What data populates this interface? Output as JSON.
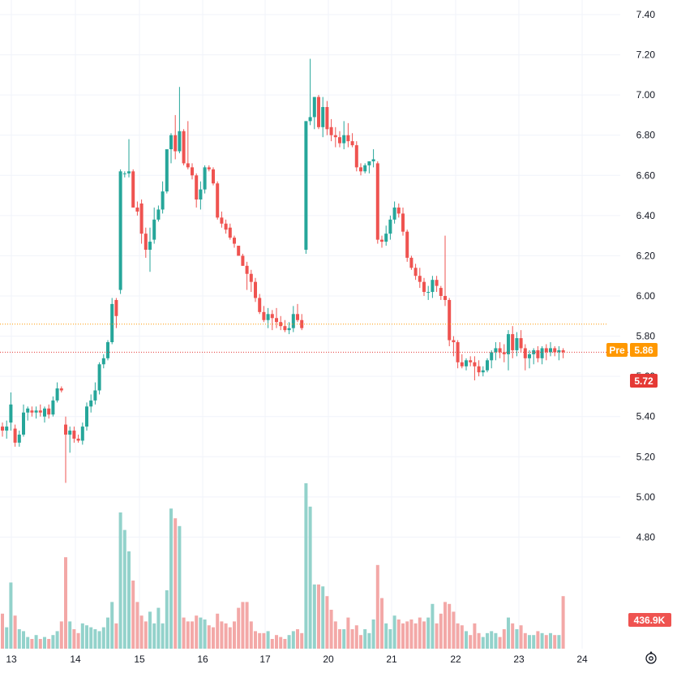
{
  "colors": {
    "up": "#26a69a",
    "down": "#ef5350",
    "up_volume": "#93d2cb",
    "down_volume": "#f3a8a7",
    "grid": "#f0f3fa",
    "pre_line": "#ff9800",
    "last_line": "#e53935"
  },
  "settings_icon": "gear-icon",
  "chart_data": {
    "type": "candlestick",
    "y_axis": {
      "min": 4.6,
      "max": 7.4,
      "ticks": [
        "7.40",
        "7.20",
        "7.00",
        "6.80",
        "6.60",
        "6.40",
        "6.20",
        "6.00",
        "5.80",
        "5.60",
        "5.40",
        "5.20",
        "5.00",
        "4.80"
      ]
    },
    "x_axis": {
      "ticks": [
        "13",
        "14",
        "15",
        "16",
        "17",
        "20",
        "21",
        "22",
        "23",
        "24"
      ]
    },
    "grid": true,
    "pre_market": {
      "label": "Pre",
      "value": "5.86"
    },
    "last_price": {
      "value": "5.72"
    },
    "volume_label": "436.9K",
    "candles": [
      [
        5.35,
        5.37,
        5.3,
        5.33,
        18
      ],
      [
        5.33,
        5.38,
        5.29,
        5.35,
        11
      ],
      [
        5.37,
        5.52,
        5.33,
        5.46,
        34
      ],
      [
        5.34,
        5.36,
        5.25,
        5.27,
        17
      ],
      [
        5.27,
        5.33,
        5.25,
        5.31,
        10
      ],
      [
        5.31,
        5.46,
        5.3,
        5.42,
        9
      ],
      [
        5.42,
        5.45,
        5.38,
        5.44,
        6
      ],
      [
        5.43,
        5.45,
        5.4,
        5.42,
        5
      ],
      [
        5.42,
        5.45,
        5.39,
        5.43,
        7
      ],
      [
        5.43,
        5.46,
        5.4,
        5.42,
        5
      ],
      [
        5.4,
        5.45,
        5.37,
        5.44,
        6
      ],
      [
        5.44,
        5.46,
        5.39,
        5.41,
        5
      ],
      [
        5.41,
        5.5,
        5.4,
        5.48,
        7
      ],
      [
        5.48,
        5.57,
        5.47,
        5.54,
        9
      ],
      [
        5.54,
        5.55,
        5.52,
        5.53,
        14
      ],
      [
        5.36,
        5.4,
        5.07,
        5.31,
        47
      ],
      [
        5.31,
        5.35,
        5.22,
        5.33,
        14
      ],
      [
        5.33,
        5.35,
        5.27,
        5.29,
        10
      ],
      [
        5.29,
        5.31,
        5.27,
        5.28,
        8
      ],
      [
        5.28,
        5.37,
        5.26,
        5.35,
        13
      ],
      [
        5.35,
        5.47,
        5.33,
        5.45,
        12
      ],
      [
        5.45,
        5.51,
        5.42,
        5.48,
        11
      ],
      [
        5.48,
        5.57,
        5.46,
        5.53,
        10
      ],
      [
        5.53,
        5.67,
        5.51,
        5.66,
        9
      ],
      [
        5.66,
        5.71,
        5.64,
        5.69,
        11
      ],
      [
        5.69,
        5.78,
        5.68,
        5.77,
        16
      ],
      [
        5.77,
        5.99,
        5.76,
        5.96,
        24
      ],
      [
        5.98,
        5.99,
        5.84,
        5.9,
        13
      ],
      [
        6.03,
        6.63,
        6.01,
        6.62,
        70
      ],
      [
        6.61,
        6.62,
        6.59,
        6.61,
        61
      ],
      [
        6.61,
        6.78,
        6.59,
        6.62,
        50
      ],
      [
        6.62,
        6.63,
        6.44,
        6.44,
        35
      ],
      [
        6.44,
        6.47,
        6.4,
        6.42,
        24
      ],
      [
        6.46,
        6.48,
        6.26,
        6.31,
        17
      ],
      [
        6.31,
        6.34,
        6.19,
        6.23,
        14
      ],
      [
        6.23,
        6.34,
        6.12,
        6.27,
        19
      ],
      [
        6.28,
        6.44,
        6.26,
        6.38,
        13
      ],
      [
        6.38,
        6.45,
        6.37,
        6.43,
        21
      ],
      [
        6.43,
        6.57,
        6.41,
        6.52,
        13
      ],
      [
        6.52,
        6.72,
        6.51,
        6.73,
        30
      ],
      [
        6.73,
        6.81,
        6.66,
        6.8,
        72
      ],
      [
        6.8,
        6.9,
        6.68,
        6.72,
        67
      ],
      [
        6.72,
        7.04,
        6.71,
        6.82,
        63
      ],
      [
        6.82,
        6.83,
        6.65,
        6.66,
        16
      ],
      [
        6.66,
        6.87,
        6.63,
        6.64,
        14
      ],
      [
        6.64,
        6.66,
        6.58,
        6.6,
        14
      ],
      [
        6.6,
        6.61,
        6.44,
        6.48,
        17
      ],
      [
        6.48,
        6.57,
        6.43,
        6.53,
        16
      ],
      [
        6.53,
        6.65,
        6.51,
        6.64,
        15
      ],
      [
        6.64,
        6.65,
        6.62,
        6.63,
        12
      ],
      [
        6.63,
        6.64,
        6.55,
        6.56,
        11
      ],
      [
        6.56,
        6.57,
        6.38,
        6.39,
        18
      ],
      [
        6.39,
        6.42,
        6.34,
        6.36,
        14
      ],
      [
        6.36,
        6.38,
        6.31,
        6.33,
        13
      ],
      [
        6.34,
        6.36,
        6.28,
        6.29,
        11
      ],
      [
        6.29,
        6.3,
        6.24,
        6.26,
        14
      ],
      [
        6.25,
        6.25,
        6.2,
        6.2,
        21
      ],
      [
        6.2,
        6.21,
        6.15,
        6.15,
        24
      ],
      [
        6.15,
        6.17,
        6.03,
        6.11,
        24
      ],
      [
        6.11,
        6.13,
        6.02,
        6.07,
        14
      ],
      [
        6.07,
        6.09,
        5.97,
        5.99,
        9
      ],
      [
        5.99,
        6.01,
        5.91,
        5.92,
        8
      ],
      [
        5.92,
        5.95,
        5.87,
        5.88,
        8
      ],
      [
        5.88,
        5.94,
        5.84,
        5.91,
        9
      ],
      [
        5.91,
        5.93,
        5.83,
        5.89,
        5
      ],
      [
        5.89,
        5.94,
        5.84,
        5.87,
        7
      ],
      [
        5.87,
        5.9,
        5.83,
        5.85,
        6
      ],
      [
        5.85,
        5.88,
        5.82,
        5.83,
        5
      ],
      [
        5.83,
        5.87,
        5.81,
        5.84,
        7
      ],
      [
        5.84,
        5.95,
        5.82,
        5.91,
        9
      ],
      [
        5.91,
        5.96,
        5.87,
        5.88,
        10
      ],
      [
        5.88,
        5.91,
        5.83,
        5.84,
        8
      ],
      [
        6.23,
        6.87,
        6.21,
        6.87,
        85
      ],
      [
        6.87,
        7.18,
        6.85,
        6.89,
        73
      ],
      [
        6.89,
        6.99,
        6.83,
        6.99,
        33
      ],
      [
        6.99,
        7.0,
        6.83,
        6.84,
        33
      ],
      [
        6.84,
        6.99,
        6.79,
        6.94,
        32
      ],
      [
        6.94,
        6.97,
        6.8,
        6.83,
        27
      ],
      [
        6.84,
        6.88,
        6.77,
        6.8,
        20
      ],
      [
        6.8,
        6.84,
        6.74,
        6.79,
        14
      ],
      [
        6.79,
        6.82,
        6.74,
        6.76,
        10
      ],
      [
        6.76,
        6.87,
        6.73,
        6.8,
        10
      ],
      [
        6.8,
        6.86,
        6.74,
        6.77,
        16
      ],
      [
        6.77,
        6.81,
        6.74,
        6.75,
        10
      ],
      [
        6.75,
        6.77,
        6.62,
        6.64,
        12
      ],
      [
        6.64,
        6.66,
        6.6,
        6.62,
        7
      ],
      [
        6.62,
        6.66,
        6.61,
        6.65,
        10
      ],
      [
        6.65,
        6.67,
        6.61,
        6.67,
        8
      ],
      [
        6.67,
        6.73,
        6.64,
        6.68,
        15
      ],
      [
        6.66,
        6.67,
        6.26,
        6.28,
        43
      ],
      [
        6.28,
        6.3,
        6.24,
        6.27,
        26
      ],
      [
        6.27,
        6.35,
        6.25,
        6.31,
        13
      ],
      [
        6.31,
        6.4,
        6.28,
        6.38,
        10
      ],
      [
        6.38,
        6.47,
        6.36,
        6.44,
        17
      ],
      [
        6.44,
        6.46,
        6.39,
        6.41,
        15
      ],
      [
        6.41,
        6.44,
        6.3,
        6.32,
        13
      ],
      [
        6.32,
        6.33,
        6.17,
        6.19,
        14
      ],
      [
        6.19,
        6.2,
        6.13,
        6.14,
        15
      ],
      [
        6.14,
        6.16,
        6.08,
        6.1,
        13
      ],
      [
        6.1,
        6.14,
        6.04,
        6.07,
        16
      ],
      [
        6.07,
        6.09,
        6.0,
        6.02,
        14
      ],
      [
        6.02,
        6.05,
        5.98,
        6.02,
        16
      ],
      [
        6.02,
        6.1,
        5.99,
        6.08,
        23
      ],
      [
        6.08,
        6.1,
        6.02,
        6.05,
        13
      ],
      [
        6.04,
        6.05,
        5.98,
        6.0,
        18
      ],
      [
        6.0,
        6.3,
        5.95,
        5.98,
        24
      ],
      [
        5.98,
        5.99,
        5.75,
        5.78,
        23
      ],
      [
        5.78,
        5.8,
        5.7,
        5.77,
        19
      ],
      [
        5.77,
        5.78,
        5.64,
        5.67,
        13
      ],
      [
        5.67,
        5.71,
        5.64,
        5.65,
        12
      ],
      [
        5.65,
        5.69,
        5.63,
        5.68,
        9
      ],
      [
        5.68,
        5.7,
        5.65,
        5.67,
        7
      ],
      [
        5.67,
        5.7,
        5.58,
        5.65,
        13
      ],
      [
        5.65,
        5.68,
        5.6,
        5.62,
        8
      ],
      [
        5.62,
        5.65,
        5.6,
        5.63,
        6
      ],
      [
        5.63,
        5.69,
        5.62,
        5.68,
        8
      ],
      [
        5.68,
        5.73,
        5.64,
        5.72,
        9
      ],
      [
        5.72,
        5.77,
        5.68,
        5.74,
        8
      ],
      [
        5.74,
        5.77,
        5.69,
        5.72,
        6
      ],
      [
        5.72,
        5.76,
        5.67,
        5.71,
        10
      ],
      [
        5.71,
        5.83,
        5.63,
        5.81,
        16
      ],
      [
        5.81,
        5.85,
        5.69,
        5.73,
        13
      ],
      [
        5.73,
        5.82,
        5.7,
        5.79,
        10
      ],
      [
        5.79,
        5.83,
        5.72,
        5.74,
        12
      ],
      [
        5.74,
        5.76,
        5.63,
        5.69,
        8
      ],
      [
        5.69,
        5.73,
        5.64,
        5.71,
        7
      ],
      [
        5.71,
        5.74,
        5.66,
        5.73,
        7
      ],
      [
        5.73,
        5.75,
        5.67,
        5.69,
        9
      ],
      [
        5.69,
        5.75,
        5.66,
        5.74,
        8
      ],
      [
        5.74,
        5.76,
        5.68,
        5.72,
        7
      ],
      [
        5.72,
        5.77,
        5.7,
        5.74,
        8
      ],
      [
        5.74,
        5.75,
        5.7,
        5.72,
        7
      ],
      [
        5.72,
        5.75,
        5.68,
        5.73,
        7
      ],
      [
        5.73,
        5.74,
        5.69,
        5.72,
        27
      ]
    ]
  }
}
